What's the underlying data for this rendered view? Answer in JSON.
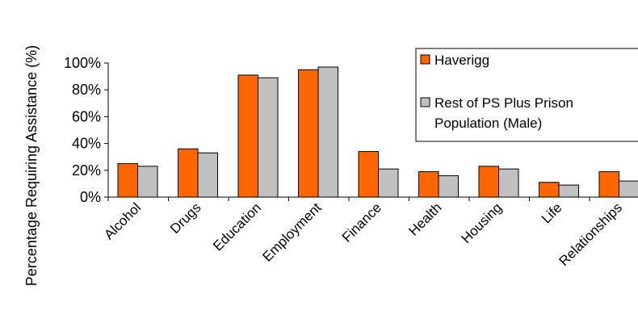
{
  "chart_data": {
    "type": "bar",
    "title": "",
    "xlabel": "",
    "ylabel": "Percentage Requiring Assistance (%)",
    "ylim": [
      0,
      100
    ],
    "yticks": [
      "0%",
      "20%",
      "40%",
      "60%",
      "80%",
      "100%"
    ],
    "categories": [
      "Alcohol",
      "Drugs",
      "Education",
      "Employment",
      "Finance",
      "Health",
      "Housing",
      "Life",
      "Relationships"
    ],
    "series": [
      {
        "name": "Haverigg",
        "color": "#ff6600",
        "values": [
          25,
          36,
          91,
          95,
          34,
          19,
          23,
          11,
          19
        ]
      },
      {
        "name": "Rest of PS Plus Prison Population (Male)",
        "color": "#c0c0c0",
        "values": [
          23,
          33,
          89,
          97,
          21,
          16,
          21,
          9,
          12
        ]
      }
    ],
    "legend": {
      "placement": "top-right",
      "lines": [
        [
          "Haverigg"
        ],
        [
          "Rest of PS Plus Prison",
          "Population (Male)"
        ]
      ]
    },
    "grid": false
  }
}
